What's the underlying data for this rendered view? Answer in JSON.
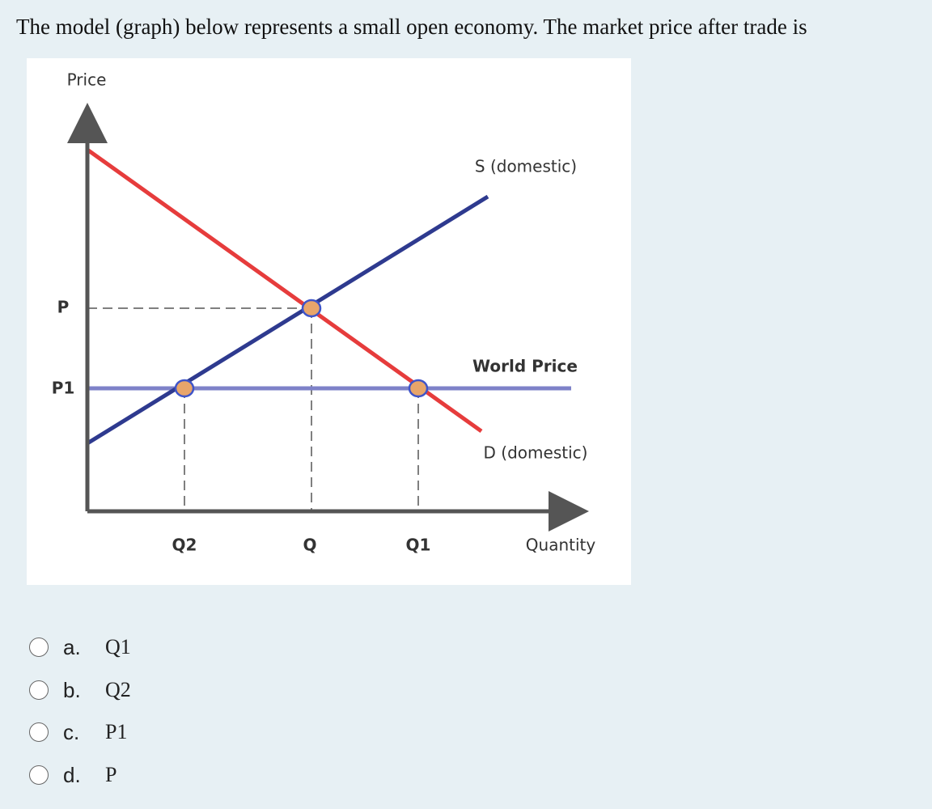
{
  "question": "The model (graph) below represents a small open economy. The market price after trade is",
  "figure": {
    "y_axis_label": "Price",
    "x_axis_label": "Quantity",
    "price_labels": [
      "P",
      "P1"
    ],
    "quantity_labels": [
      "Q2",
      "Q",
      "Q1"
    ],
    "supply_label": "S (domestic)",
    "demand_label": "D (domestic)",
    "world_price_label": "World Price"
  },
  "options": [
    {
      "letter": "a.",
      "text": "Q1"
    },
    {
      "letter": "b.",
      "text": "Q2"
    },
    {
      "letter": "c.",
      "text": "P1"
    },
    {
      "letter": "d.",
      "text": "P"
    }
  ]
}
